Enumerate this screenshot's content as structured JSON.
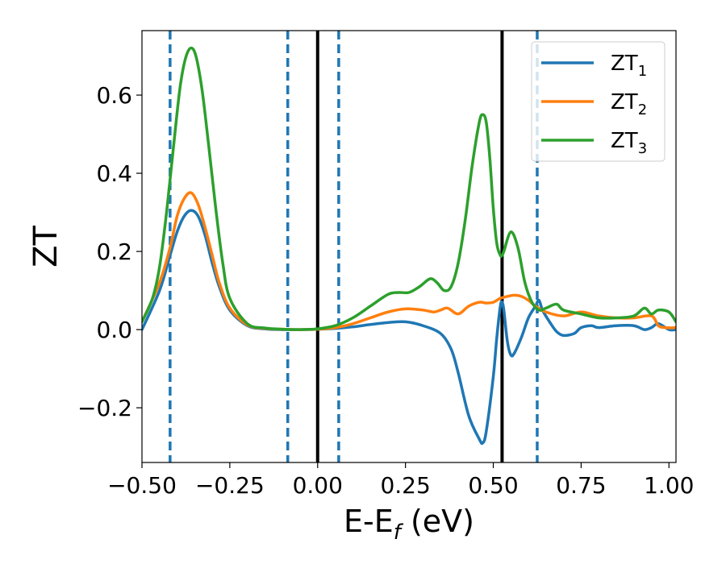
{
  "chart_data": {
    "type": "line",
    "title": "",
    "xlabel": "E-E",
    "xlabel_sub": "f",
    "xlabel_unit": " (eV)",
    "ylabel": "ZT",
    "xlim": [
      -0.5,
      1.02
    ],
    "ylim": [
      -0.34,
      0.765
    ],
    "xticks": [
      -0.5,
      -0.25,
      0.0,
      0.25,
      0.5,
      0.75,
      1.0
    ],
    "xtick_labels": [
      "−0.50",
      "−0.25",
      "0.00",
      "0.25",
      "0.50",
      "0.75",
      "1.00"
    ],
    "yticks": [
      -0.2,
      0.0,
      0.2,
      0.4,
      0.6
    ],
    "ytick_labels": [
      "−0.2",
      "0.0",
      "0.2",
      "0.4",
      "0.6"
    ],
    "grid": false,
    "legend_position": "top-right",
    "vlines_dashed": [
      -0.42,
      -0.085,
      0.06,
      0.625
    ],
    "vlines_solid": [
      0.0,
      0.525
    ],
    "series": [
      {
        "name": "ZT",
        "name_sub": "1",
        "color": "#1f77b4",
        "x": [
          -0.5,
          -0.45,
          -0.42,
          -0.4,
          -0.38,
          -0.36,
          -0.34,
          -0.32,
          -0.3,
          -0.28,
          -0.25,
          -0.2,
          -0.15,
          -0.1,
          -0.05,
          0.0,
          0.05,
          0.1,
          0.15,
          0.2,
          0.25,
          0.3,
          0.35,
          0.38,
          0.4,
          0.43,
          0.46,
          0.47,
          0.48,
          0.5,
          0.51,
          0.52,
          0.525,
          0.53,
          0.54,
          0.55,
          0.56,
          0.58,
          0.6,
          0.62,
          0.63,
          0.64,
          0.66,
          0.68,
          0.7,
          0.73,
          0.75,
          0.78,
          0.8,
          0.85,
          0.9,
          0.93,
          0.95,
          0.97,
          1.0,
          1.02
        ],
        "y": [
          0.0,
          0.1,
          0.19,
          0.25,
          0.29,
          0.305,
          0.29,
          0.24,
          0.17,
          0.11,
          0.05,
          0.01,
          0.002,
          0.0,
          0.0,
          0.001,
          0.003,
          0.007,
          0.013,
          0.018,
          0.02,
          0.01,
          -0.01,
          -0.05,
          -0.11,
          -0.22,
          -0.28,
          -0.29,
          -0.26,
          -0.12,
          -0.02,
          0.06,
          0.07,
          0.05,
          -0.03,
          -0.065,
          -0.06,
          -0.02,
          0.03,
          0.06,
          0.075,
          0.05,
          0.02,
          -0.005,
          -0.015,
          -0.01,
          0.005,
          0.01,
          0.005,
          0.01,
          0.01,
          0.0,
          0.005,
          0.015,
          0.0,
          0.0
        ]
      },
      {
        "name": "ZT",
        "name_sub": "2",
        "color": "#ff7f0e",
        "x": [
          -0.5,
          -0.45,
          -0.42,
          -0.4,
          -0.38,
          -0.36,
          -0.34,
          -0.32,
          -0.3,
          -0.28,
          -0.25,
          -0.2,
          -0.15,
          -0.1,
          -0.05,
          0.0,
          0.05,
          0.1,
          0.15,
          0.2,
          0.25,
          0.3,
          0.33,
          0.35,
          0.37,
          0.4,
          0.43,
          0.46,
          0.48,
          0.5,
          0.52,
          0.54,
          0.56,
          0.58,
          0.6,
          0.62,
          0.65,
          0.7,
          0.75,
          0.8,
          0.85,
          0.9,
          0.95,
          0.97,
          0.99,
          1.02
        ],
        "y": [
          0.02,
          0.12,
          0.21,
          0.29,
          0.335,
          0.35,
          0.32,
          0.26,
          0.19,
          0.12,
          0.055,
          0.012,
          0.003,
          0.001,
          0.0,
          0.001,
          0.005,
          0.015,
          0.03,
          0.045,
          0.053,
          0.05,
          0.045,
          0.05,
          0.055,
          0.04,
          0.06,
          0.07,
          0.068,
          0.07,
          0.08,
          0.085,
          0.088,
          0.085,
          0.075,
          0.06,
          0.045,
          0.035,
          0.045,
          0.035,
          0.03,
          0.03,
          0.035,
          0.01,
          0.005,
          0.005
        ]
      },
      {
        "name": "ZT",
        "name_sub": "3",
        "color": "#2ca02c",
        "x": [
          -0.5,
          -0.47,
          -0.45,
          -0.43,
          -0.41,
          -0.39,
          -0.37,
          -0.35,
          -0.33,
          -0.31,
          -0.29,
          -0.27,
          -0.25,
          -0.2,
          -0.15,
          -0.1,
          -0.05,
          0.0,
          0.05,
          0.1,
          0.15,
          0.2,
          0.23,
          0.26,
          0.29,
          0.32,
          0.34,
          0.36,
          0.38,
          0.4,
          0.42,
          0.44,
          0.46,
          0.47,
          0.48,
          0.49,
          0.5,
          0.51,
          0.52,
          0.525,
          0.53,
          0.55,
          0.57,
          0.59,
          0.61,
          0.63,
          0.65,
          0.68,
          0.7,
          0.75,
          0.8,
          0.85,
          0.9,
          0.93,
          0.95,
          0.97,
          1.0,
          1.02
        ],
        "y": [
          0.02,
          0.08,
          0.16,
          0.3,
          0.47,
          0.63,
          0.71,
          0.71,
          0.62,
          0.47,
          0.31,
          0.17,
          0.08,
          0.015,
          0.004,
          0.001,
          0.0,
          0.002,
          0.01,
          0.03,
          0.06,
          0.09,
          0.095,
          0.095,
          0.11,
          0.13,
          0.12,
          0.1,
          0.11,
          0.17,
          0.28,
          0.42,
          0.53,
          0.55,
          0.53,
          0.44,
          0.31,
          0.22,
          0.19,
          0.19,
          0.2,
          0.25,
          0.21,
          0.12,
          0.07,
          0.05,
          0.055,
          0.065,
          0.05,
          0.04,
          0.03,
          0.03,
          0.035,
          0.055,
          0.04,
          0.05,
          0.045,
          0.02
        ]
      }
    ]
  }
}
